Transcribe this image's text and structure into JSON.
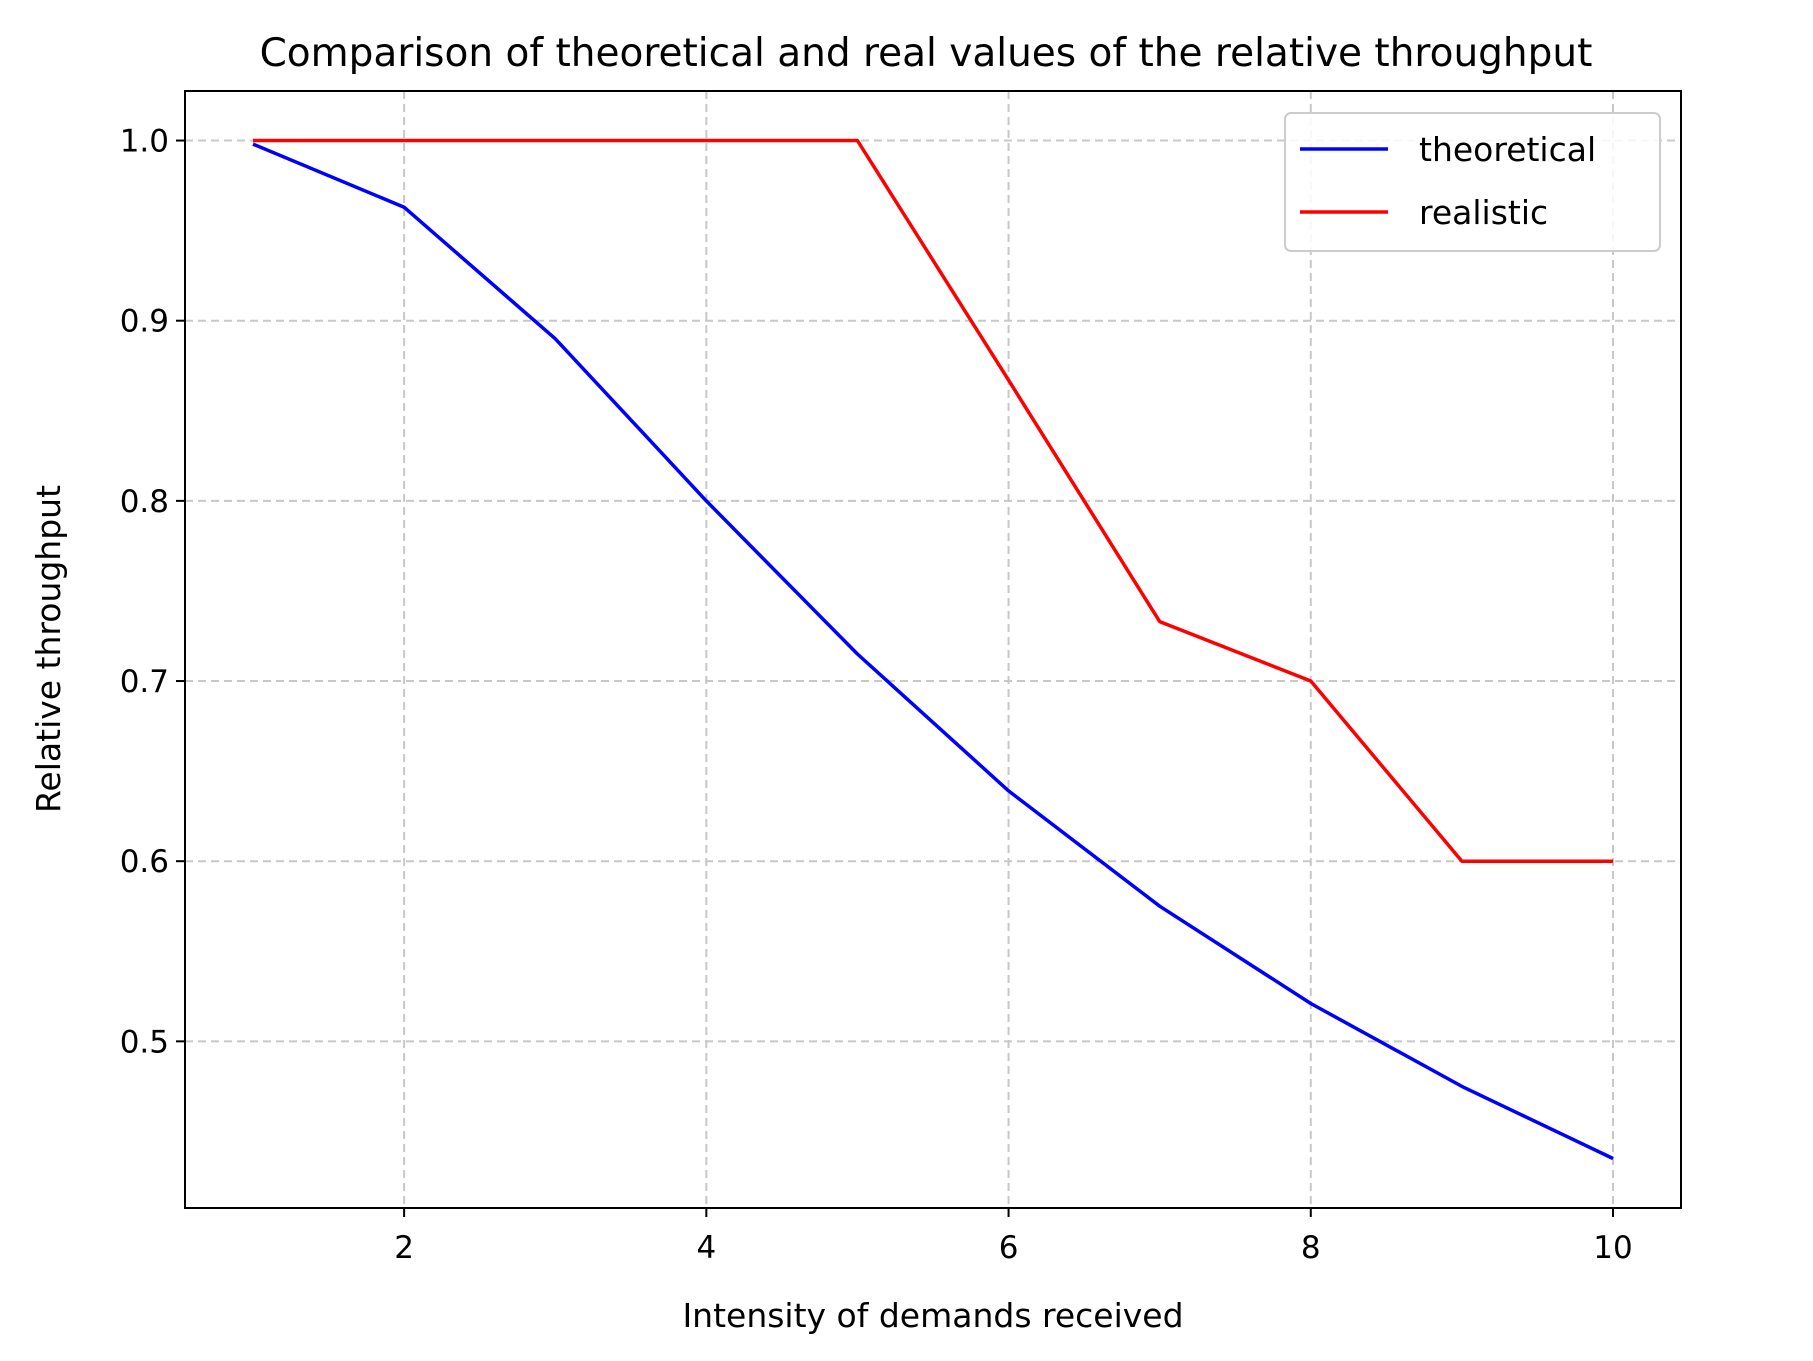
{
  "chart_data": {
    "type": "line",
    "title": "Comparison of theoretical and real values of the relative throughput",
    "xlabel": "Intensity of demands received",
    "ylabel": "Relative throughput",
    "xlim": [
      0.55,
      10.45
    ],
    "ylim": [
      0.4075,
      1.0275
    ],
    "xticks": [
      2,
      4,
      6,
      8,
      10
    ],
    "xtick_labels": [
      "2",
      "4",
      "6",
      "8",
      "10"
    ],
    "yticks": [
      0.5,
      0.6,
      0.7,
      0.8,
      0.9,
      1.0
    ],
    "ytick_labels": [
      "0.5",
      "0.6",
      "0.7",
      "0.8",
      "0.9",
      "1.0"
    ],
    "grid": true,
    "legend_position": "top-right",
    "x": [
      1,
      2,
      3,
      4,
      5,
      6,
      7,
      8,
      9,
      10
    ],
    "series": [
      {
        "name": "theoretical",
        "color": "#0000ff",
        "values": [
          0.998,
          0.963,
          0.89,
          0.8,
          0.715,
          0.639,
          0.575,
          0.521,
          0.475,
          0.435
        ]
      },
      {
        "name": "realistic",
        "color": "#ff0000",
        "values": [
          1.0,
          1.0,
          1.0,
          1.0,
          1.0,
          0.867,
          0.733,
          0.7,
          0.6,
          0.6
        ]
      }
    ]
  }
}
